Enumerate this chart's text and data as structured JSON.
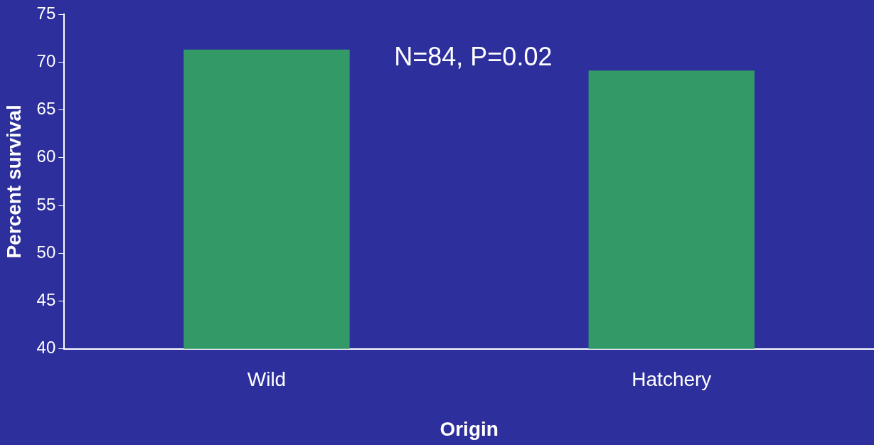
{
  "chart_data": {
    "type": "bar",
    "xlabel": "Origin",
    "ylabel": "Percent survival",
    "categories": [
      "Wild",
      "Hatchery"
    ],
    "values": [
      71.3,
      69.1
    ],
    "color": "#339966",
    "ylim": [
      40,
      75
    ],
    "yticks": [
      40,
      45,
      50,
      55,
      60,
      65,
      70,
      75
    ],
    "grid": false,
    "legend": false,
    "annotations": [
      "N=84, P=0.02"
    ]
  }
}
